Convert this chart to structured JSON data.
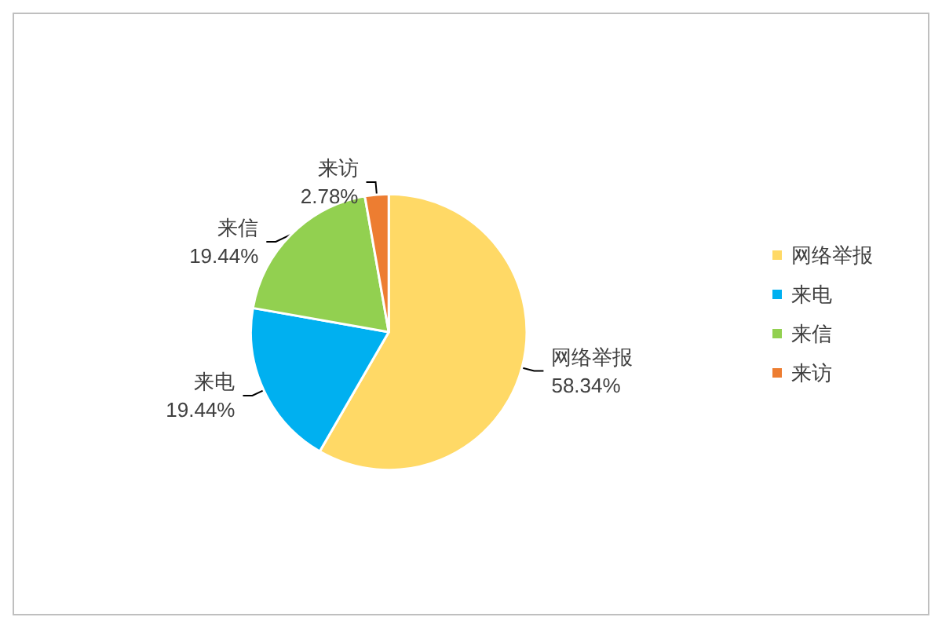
{
  "chart_data": {
    "type": "pie",
    "categories": [
      "网络举报",
      "来电",
      "来信",
      "来访"
    ],
    "values": [
      58.34,
      19.44,
      19.44,
      2.78
    ],
    "value_labels": [
      "58.34%",
      "19.44%",
      "19.44%",
      "2.78%"
    ],
    "colors": [
      "#ffd966",
      "#00b0f0",
      "#92d050",
      "#ed7d31"
    ],
    "legend": "right"
  }
}
